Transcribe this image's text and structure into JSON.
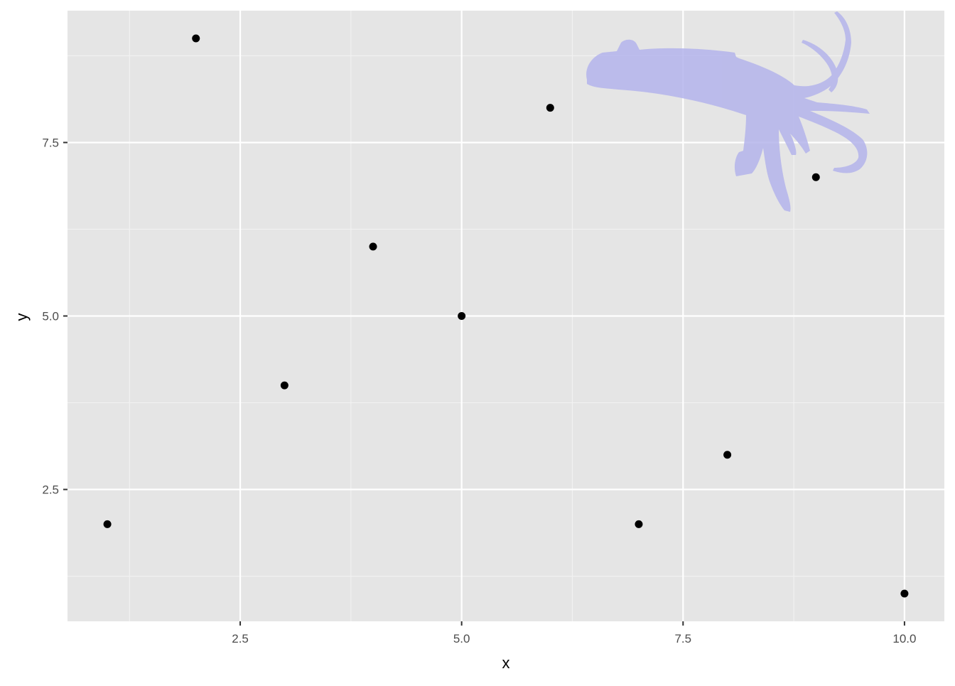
{
  "chart_data": {
    "type": "scatter",
    "title": "",
    "xlabel": "x",
    "ylabel": "y",
    "xlim": [
      0.55,
      10.45
    ],
    "ylim": [
      0.6,
      9.4
    ],
    "x_ticks": [
      2.5,
      5.0,
      7.5,
      10.0
    ],
    "x_tick_labels": [
      "2.5",
      "5.0",
      "7.5",
      "10.0"
    ],
    "y_ticks": [
      2.5,
      5.0,
      7.5
    ],
    "y_tick_labels": [
      "2.5",
      "5.0",
      "7.5"
    ],
    "x_minor_ticks": [
      1.25,
      3.75,
      6.25,
      8.75
    ],
    "y_minor_ticks": [
      1.25,
      3.75,
      6.25,
      8.75
    ],
    "grid": true,
    "legend": "none",
    "points": [
      {
        "x": 1,
        "y": 2
      },
      {
        "x": 2,
        "y": 9
      },
      {
        "x": 3,
        "y": 4
      },
      {
        "x": 4,
        "y": 6
      },
      {
        "x": 5,
        "y": 5
      },
      {
        "x": 6,
        "y": 8
      },
      {
        "x": 7,
        "y": 2
      },
      {
        "x": 8,
        "y": 3
      },
      {
        "x": 9,
        "y": 7
      },
      {
        "x": 10,
        "y": 1
      }
    ],
    "overlay_image": {
      "description_icon": "squid-silhouette-icon",
      "color": "#b4b4ec"
    }
  },
  "colors": {
    "panel_background": "#e5e5e5",
    "grid_major": "#ffffff",
    "grid_minor": "#f2f2f2",
    "point": "#000000",
    "tick_mark": "#333333"
  }
}
